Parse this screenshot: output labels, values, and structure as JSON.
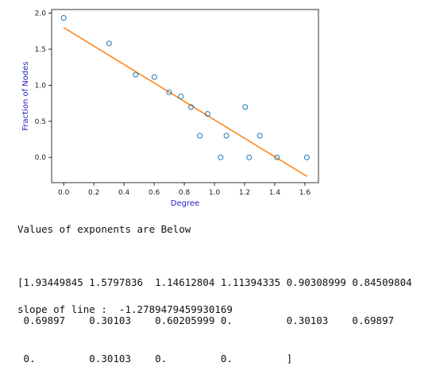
{
  "chart_data": {
    "type": "scatter",
    "title": "",
    "xlabel": "Degree",
    "ylabel": "Fraction of Nodes",
    "xlim": [
      -0.08,
      1.69
    ],
    "ylim": [
      -0.35,
      2.05
    ],
    "xticks": [
      "0.0",
      "0.2",
      "0.4",
      "0.6",
      "0.8",
      "1.0",
      "1.2",
      "1.4",
      "1.6"
    ],
    "xtick_values": [
      0.0,
      0.2,
      0.4,
      0.6,
      0.8,
      1.0,
      1.2,
      1.4,
      1.6
    ],
    "yticks": [
      "0.0",
      "0.5",
      "1.0",
      "1.5",
      "2.0"
    ],
    "ytick_values": [
      0.0,
      0.5,
      1.0,
      1.5,
      2.0
    ],
    "grid": false,
    "points": {
      "x": [
        0.0,
        0.30103,
        0.47712,
        0.60206,
        0.69897,
        0.77815,
        0.8451,
        0.90309,
        0.95424,
        1.04139,
        1.07918,
        1.20412,
        1.23045,
        1.30103,
        1.41497,
        1.61278
      ],
      "y": [
        1.93449845,
        1.5797836,
        1.14612804,
        1.11394335,
        0.90308999,
        0.84509804,
        0.69897,
        0.30103,
        0.60205999,
        0.0,
        0.30103,
        0.69897,
        0.0,
        0.30103,
        0.0,
        0.0
      ],
      "marker_color": "#1f77b4"
    },
    "fit_line": {
      "x": [
        0.0,
        1.61278
      ],
      "y": [
        1.8,
        -0.2626
      ],
      "color": "#ff7f0e"
    }
  },
  "output": {
    "heading": "Values of exponents are Below",
    "array_lines": [
      "[1.93449845 1.5797836  1.14612804 1.11394335 0.90308999 0.84509804",
      " 0.69897    0.30103    0.60205999 0.         0.30103    0.69897",
      " 0.         0.30103    0.         0.         ]"
    ],
    "slope_text": "slope of line :  -1.2789479459930169"
  }
}
